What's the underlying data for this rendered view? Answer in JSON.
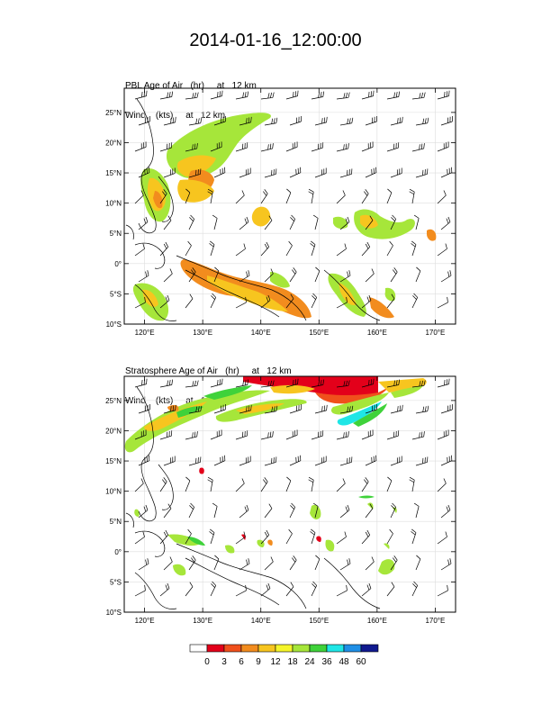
{
  "title": "2014-01-16_12:00:00",
  "panels": [
    {
      "field_line": "PBL Age of Air   (hr)     at   12 km",
      "wind_line": "Wind    (kts)     at   12 km"
    },
    {
      "field_line": "Stratosphere Age of Air   (hr)     at   12 km",
      "wind_line": "Wind    (kts)     at   12 km"
    }
  ],
  "axes": {
    "lon_ticks": [
      "120°E",
      "130°E",
      "140°E",
      "150°E",
      "160°E",
      "170°E"
    ],
    "lat_ticks": [
      "25°N",
      "20°N",
      "15°N",
      "10°N",
      "5°N",
      "0°",
      "5°S",
      "10°S"
    ],
    "lon_values": [
      120,
      130,
      140,
      150,
      160,
      170
    ],
    "lat_values": [
      25,
      20,
      15,
      10,
      5,
      0,
      -5,
      -10
    ],
    "lon_range": [
      116.5,
      173.5
    ],
    "lat_range": [
      -10,
      29
    ]
  },
  "colorbar": {
    "labels": [
      "0",
      "3",
      "6",
      "9",
      "12",
      "18",
      "24",
      "36",
      "48",
      "60"
    ],
    "colors": [
      "#ffffff",
      "#e3001a",
      "#f0501c",
      "#f28c1e",
      "#f7c51f",
      "#f5f52a",
      "#a6e63a",
      "#3fd23a",
      "#1fe6e6",
      "#1f8fe6",
      "#101a8f"
    ]
  }
}
